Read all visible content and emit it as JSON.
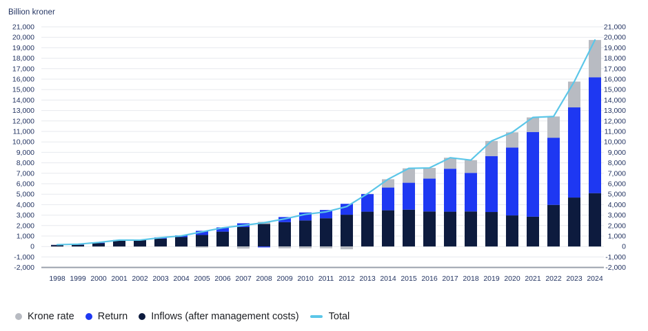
{
  "chart_data": {
    "type": "bar",
    "stacked": true,
    "title": "Billion kroner",
    "xlabel": "",
    "ylabel": "Billion kroner",
    "ylim": [
      -2000,
      21000
    ],
    "ytick_step": 1000,
    "y_axis_sides": [
      "left",
      "right"
    ],
    "grid": "horizontal",
    "legend_position": "bottom",
    "categories": [
      "1998",
      "1999",
      "2000",
      "2001",
      "2002",
      "2003",
      "2004",
      "2005",
      "2006",
      "2007",
      "2008",
      "2009",
      "2010",
      "2011",
      "2012",
      "2013",
      "2014",
      "2015",
      "2016",
      "2017",
      "2018",
      "2019",
      "2020",
      "2021",
      "2022",
      "2023",
      "2024"
    ],
    "series": [
      {
        "name": "Inflows (after management costs)",
        "render": "bar",
        "color": "#0d1b3e",
        "values": [
          140,
          165,
          310,
          560,
          650,
          750,
          900,
          1100,
          1420,
          1860,
          2150,
          2330,
          2490,
          2700,
          3035,
          3330,
          3460,
          3520,
          3350,
          3330,
          3350,
          3300,
          2970,
          2850,
          3980,
          4680,
          5100
        ]
      },
      {
        "name": "Return",
        "render": "bar",
        "color": "#1e38f2",
        "values": [
          30,
          55,
          74,
          56,
          5,
          125,
          165,
          400,
          404,
          359,
          -85,
          486,
          764,
          790,
          1046,
          1683,
          2174,
          2574,
          3140,
          4104,
          3688,
          5345,
          6490,
          8100,
          6420,
          8620,
          11080
        ]
      },
      {
        "name": "Krone rate",
        "render": "bar",
        "color": "#b8bbc2",
        "values": [
          2,
          2,
          2,
          -2,
          -46,
          -30,
          -49,
          -101,
          -40,
          -200,
          210,
          -176,
          -177,
          -178,
          -265,
          25,
          797,
          1377,
          1020,
          1054,
          1218,
          1443,
          1454,
          1390,
          2029,
          2465,
          3562
        ]
      },
      {
        "name": "Total",
        "render": "line",
        "color": "#5bc6e8",
        "values": [
          172,
          222,
          386,
          614,
          609,
          845,
          1016,
          1399,
          1784,
          2019,
          2275,
          2640,
          3077,
          3312,
          3816,
          5038,
          6431,
          7471,
          7510,
          8488,
          8256,
          10088,
          10914,
          12340,
          12429,
          15765,
          19742
        ]
      }
    ]
  },
  "legend": {
    "items": [
      {
        "label": "Krone rate",
        "color": "#b8bbc2",
        "shape": "circle"
      },
      {
        "label": "Return",
        "color": "#1e38f2",
        "shape": "circle"
      },
      {
        "label": "Inflows (after management costs)",
        "color": "#0d1b3e",
        "shape": "circle"
      },
      {
        "label": "Total",
        "color": "#5bc6e8",
        "shape": "dash"
      }
    ]
  },
  "style": {
    "gridline_color": "#e7e9ee",
    "baseline_color": "#9aa1ac",
    "axis_text_color": "#1e2f5e",
    "legend_text_color": "#1c1e22"
  }
}
